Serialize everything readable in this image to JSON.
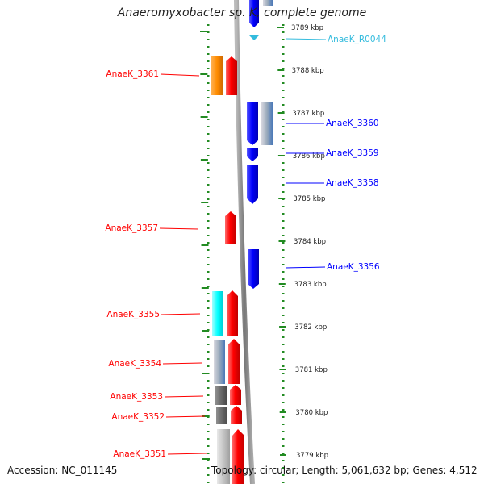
{
  "title": "Anaeromyxobacter sp. K, complete genome",
  "footer": {
    "accession": "Accession: NC_011145",
    "topology": "Topology: circular; Length: 5,061,632 bp; Genes: 4,512"
  },
  "colors": {
    "forward": "#ff0000",
    "reverse": "#0000ff",
    "rna": "#33bbdd",
    "ruler": "#228b22",
    "backbone": "#888888"
  },
  "scale": {
    "unit": "kbp",
    "ticks": [
      {
        "label": "3789 kbp",
        "kbp": 3789
      },
      {
        "label": "3788 kbp",
        "kbp": 3788
      },
      {
        "label": "3787 kbp",
        "kbp": 3787
      },
      {
        "label": "3786 kbp",
        "kbp": 3786
      },
      {
        "label": "3785 kbp",
        "kbp": 3785
      },
      {
        "label": "3784 kbp",
        "kbp": 3784
      },
      {
        "label": "3783 kbp",
        "kbp": 3783
      },
      {
        "label": "3782 kbp",
        "kbp": 3782
      },
      {
        "label": "3781 kbp",
        "kbp": 3781
      },
      {
        "label": "3780 kbp",
        "kbp": 3780
      },
      {
        "label": "3779 kbp",
        "kbp": 3779
      }
    ]
  },
  "genes": [
    {
      "label": "AnaeK_R0044",
      "strand": "reverse",
      "kind": "rna"
    },
    {
      "label": "AnaeK_3361",
      "strand": "forward"
    },
    {
      "label": "AnaeK_3360",
      "strand": "reverse"
    },
    {
      "label": "AnaeK_3359",
      "strand": "reverse"
    },
    {
      "label": "AnaeK_3358",
      "strand": "reverse"
    },
    {
      "label": "AnaeK_3357",
      "strand": "forward"
    },
    {
      "label": "AnaeK_3356",
      "strand": "reverse"
    },
    {
      "label": "AnaeK_3355",
      "strand": "forward"
    },
    {
      "label": "AnaeK_3354",
      "strand": "forward"
    },
    {
      "label": "AnaeK_3353",
      "strand": "forward"
    },
    {
      "label": "AnaeK_3352",
      "strand": "forward"
    },
    {
      "label": "AnaeK_3351",
      "strand": "forward"
    }
  ]
}
